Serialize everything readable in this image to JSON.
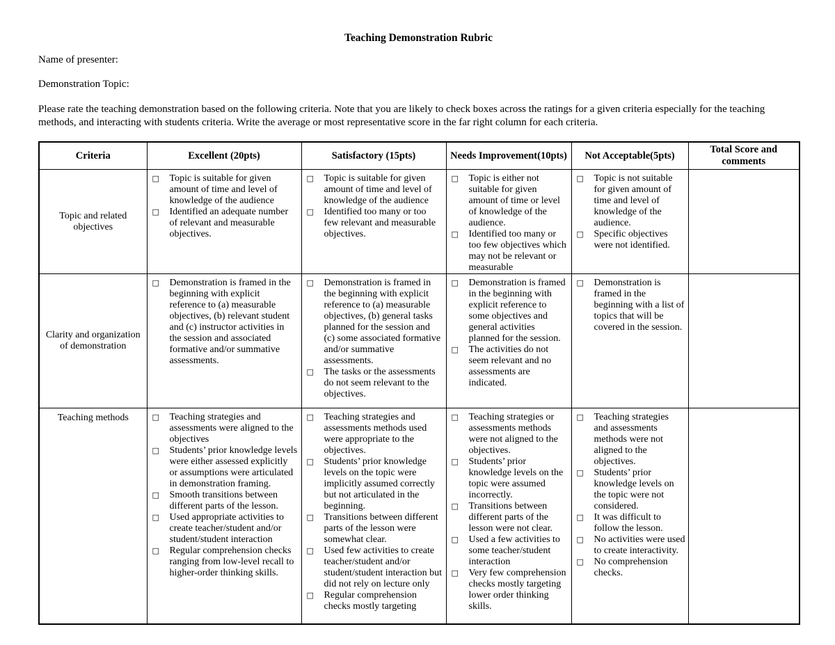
{
  "colors": {
    "text": "#000000",
    "background": "#ffffff",
    "border": "#000000"
  },
  "doc": {
    "title": "Teaching Demonstration Rubric",
    "presenter_label": "Name of presenter:",
    "topic_label": "Demonstration Topic:",
    "instructions": "Please rate the teaching demonstration based on the following criteria. Note that you are likely to check boxes across the ratings for a given criteria especially for the teaching methods, and interacting with students criteria. Write the average or most representative score in the far right column for each criteria."
  },
  "table": {
    "checkbox_glyph": "□",
    "headers": [
      "Criteria",
      "Excellent (20pts)",
      "Satisfactory (15pts)",
      "Needs Improvement(10pts)",
      "Not Acceptable(5pts)",
      "Total Score and comments"
    ],
    "rows": [
      {
        "criteria": "Topic and related objectives",
        "excellent": [
          "Topic is suitable for given amount of time and level of knowledge of the audience",
          "Identified an adequate number of relevant and measurable objectives."
        ],
        "satisfactory": [
          "Topic is suitable for given amount of time and level of knowledge of the audience",
          "Identified too many or too few relevant and measurable objectives."
        ],
        "needs_improvement": [
          "Topic is either not suitable for given amount of time or level of knowledge of the audience.",
          "Identified too many or too few objectives which may not be relevant or measurable"
        ],
        "not_acceptable": [
          "Topic is not suitable for given amount of time and level of knowledge of the audience.",
          "Specific objectives were not identified."
        ],
        "total": ""
      },
      {
        "criteria": "Clarity and organization of demonstration",
        "excellent": [
          "Demonstration is framed in the beginning with explicit reference to (a) measurable objectives, (b) relevant student and (c) instructor activities in the session and associated formative and/or summative assessments."
        ],
        "satisfactory": [
          "Demonstration is framed in the beginning with explicit reference to (a) measurable objectives, (b) general tasks planned for the session and (c) some associated formative and/or summative assessments.",
          "The tasks or the assessments do not seem relevant to the objectives."
        ],
        "needs_improvement": [
          "Demonstration is framed in the beginning with explicit reference to some objectives and general activities planned for the session.",
          "The activities do not seem relevant and no assessments are indicated."
        ],
        "not_acceptable": [
          "Demonstration is framed in the beginning with a list of topics that will be covered in the session."
        ],
        "total": ""
      },
      {
        "criteria": "Teaching methods",
        "excellent": [
          "Teaching strategies and assessments were aligned to the objectives",
          "Students’ prior knowledge levels were either assessed explicitly or assumptions were articulated in demonstration framing.",
          "Smooth transitions between different parts of the lesson.",
          "Used appropriate activities to create teacher/student and/or student/student interaction",
          "Regular comprehension checks ranging from low-level recall to higher-order thinking skills."
        ],
        "satisfactory": [
          "Teaching strategies and assessments methods used were appropriate to the objectives.",
          "Students’ prior knowledge levels on the topic were implicitly assumed correctly but not articulated in the beginning.",
          "Transitions between different parts of the lesson were somewhat clear.",
          "Used  few activities to create teacher/student and/or student/student interaction but did not rely on lecture only",
          "Regular comprehension checks mostly targeting"
        ],
        "needs_improvement": [
          "Teaching strategies or assessments methods were not aligned to the objectives.",
          "Students’ prior knowledge levels on the topic were assumed incorrectly.",
          "Transitions between different parts of the lesson were not clear.",
          "Used  a few activities to some teacher/student interaction",
          "Very few comprehension checks mostly targeting lower order thinking skills."
        ],
        "not_acceptable": [
          "Teaching strategies and assessments methods were not aligned to the objectives.",
          "Students’ prior knowledge levels on the topic were not considered.",
          "It was difficult to follow the lesson.",
          "No activities were used to create interactivity.",
          "No comprehension checks."
        ],
        "total": ""
      }
    ]
  }
}
